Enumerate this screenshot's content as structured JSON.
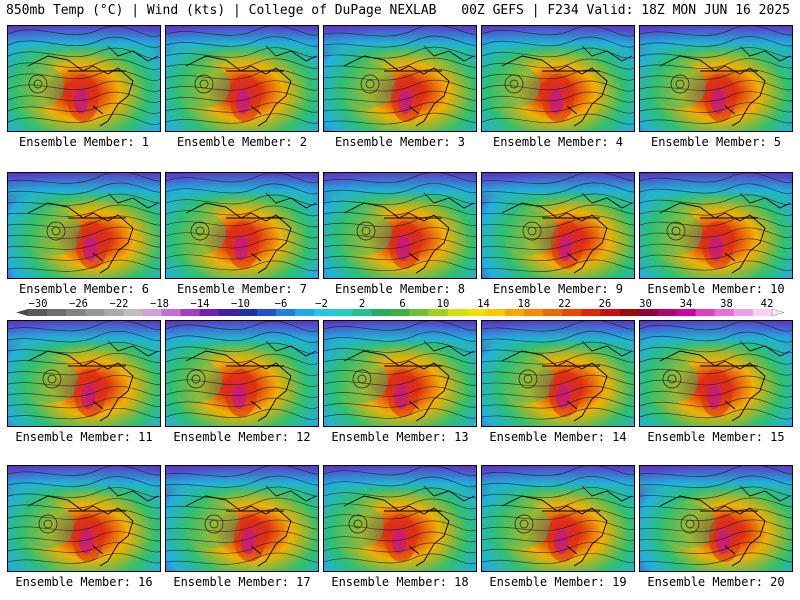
{
  "header": {
    "left": "850mb Temp (°C) | Wind (kts) | College of DuPage NEXLAB",
    "right": "00Z GEFS | F234 Valid: 18Z MON JUN 16 2025"
  },
  "members": [
    "Ensemble Member: 1",
    "Ensemble Member: 2",
    "Ensemble Member: 3",
    "Ensemble Member: 4",
    "Ensemble Member: 5",
    "Ensemble Member: 6",
    "Ensemble Member: 7",
    "Ensemble Member: 8",
    "Ensemble Member: 9",
    "Ensemble Member: 10",
    "Ensemble Member: 11",
    "Ensemble Member: 12",
    "Ensemble Member: 13",
    "Ensemble Member: 14",
    "Ensemble Member: 15",
    "Ensemble Member: 16",
    "Ensemble Member: 17",
    "Ensemble Member: 18",
    "Ensemble Member: 19",
    "Ensemble Member: 20"
  ],
  "colorbar": {
    "labels": [
      "−30",
      "−26",
      "−22",
      "−18",
      "−14",
      "−10",
      "−6",
      "−2",
      "2",
      "6",
      "10",
      "14",
      "18",
      "22",
      "26",
      "30",
      "34",
      "38",
      "42"
    ],
    "colors": [
      "#5a5a5a",
      "#6e6e6e",
      "#828282",
      "#969696",
      "#aaaaaa",
      "#bebebe",
      "#d0a0d8",
      "#c070d0",
      "#a040c0",
      "#7020b0",
      "#4020a0",
      "#2030b0",
      "#2050d0",
      "#2080e0",
      "#20a8f0",
      "#20c8e8",
      "#20d0c0",
      "#20c090",
      "#20b060",
      "#40b040",
      "#70c030",
      "#a0d020",
      "#d0e010",
      "#f0e000",
      "#f8c800",
      "#f8a800",
      "#f88800",
      "#f06800",
      "#e84800",
      "#e02800",
      "#c81010",
      "#a00808",
      "#900040",
      "#b00070",
      "#d000a0",
      "#e040c0",
      "#e870d8",
      "#f0a0e8",
      "#f8d0f0"
    ]
  },
  "map_colors": {
    "cold": "#6030c0",
    "cool": "#20b0e0",
    "mild": "#30c070",
    "warm": "#f0b000",
    "hot": "#e03010",
    "extreme": "#c01890"
  }
}
